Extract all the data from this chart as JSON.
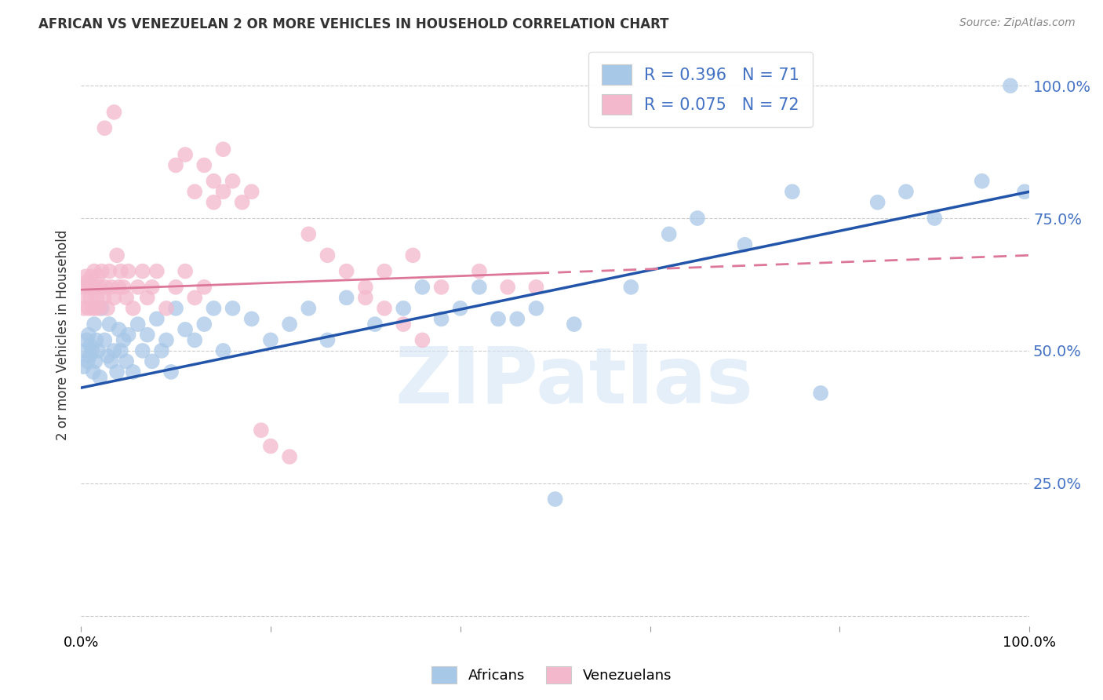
{
  "title": "AFRICAN VS VENEZUELAN 2 OR MORE VEHICLES IN HOUSEHOLD CORRELATION CHART",
  "source": "Source: ZipAtlas.com",
  "ylabel": "2 or more Vehicles in Household",
  "xlim": [
    0.0,
    1.0
  ],
  "ylim": [
    -0.02,
    1.08
  ],
  "ytick_vals": [
    0.0,
    0.25,
    0.5,
    0.75,
    1.0
  ],
  "ytick_labels": [
    "",
    "25.0%",
    "50.0%",
    "75.0%",
    "100.0%"
  ],
  "blue_R": 0.396,
  "blue_N": 71,
  "pink_R": 0.075,
  "pink_N": 72,
  "blue_color": "#a8c8e8",
  "pink_color": "#f4b8cc",
  "blue_line_color": "#2255aa",
  "pink_line_color": "#dd7799",
  "watermark": "ZIPatlas",
  "blue_line_x0": 0.0,
  "blue_line_y0": 0.43,
  "blue_line_x1": 1.0,
  "blue_line_y1": 0.8,
  "pink_line_x0": 0.0,
  "pink_line_y0": 0.615,
  "pink_line_x1": 1.0,
  "pink_line_y1": 0.68,
  "pink_line_dash_start": 0.48,
  "blue_africans_x": [
    0.003,
    0.005,
    0.006,
    0.007,
    0.008,
    0.009,
    0.01,
    0.012,
    0.013,
    0.014,
    0.015,
    0.016,
    0.018,
    0.02,
    0.022,
    0.025,
    0.028,
    0.03,
    0.032,
    0.035,
    0.038,
    0.04,
    0.042,
    0.045,
    0.048,
    0.05,
    0.055,
    0.06,
    0.065,
    0.07,
    0.075,
    0.08,
    0.085,
    0.09,
    0.095,
    0.1,
    0.11,
    0.12,
    0.13,
    0.14,
    0.15,
    0.16,
    0.18,
    0.2,
    0.22,
    0.24,
    0.26,
    0.28,
    0.31,
    0.34,
    0.36,
    0.38,
    0.4,
    0.42,
    0.44,
    0.46,
    0.48,
    0.5,
    0.52,
    0.58,
    0.62,
    0.65,
    0.7,
    0.75,
    0.78,
    0.84,
    0.87,
    0.9,
    0.95,
    0.98,
    0.995
  ],
  "blue_africans_y": [
    0.47,
    0.5,
    0.52,
    0.48,
    0.53,
    0.49,
    0.51,
    0.5,
    0.46,
    0.55,
    0.48,
    0.52,
    0.5,
    0.45,
    0.58,
    0.52,
    0.49,
    0.55,
    0.48,
    0.5,
    0.46,
    0.54,
    0.5,
    0.52,
    0.48,
    0.53,
    0.46,
    0.55,
    0.5,
    0.53,
    0.48,
    0.56,
    0.5,
    0.52,
    0.46,
    0.58,
    0.54,
    0.52,
    0.55,
    0.58,
    0.5,
    0.58,
    0.56,
    0.52,
    0.55,
    0.58,
    0.52,
    0.6,
    0.55,
    0.58,
    0.62,
    0.56,
    0.58,
    0.62,
    0.56,
    0.56,
    0.58,
    0.22,
    0.55,
    0.62,
    0.72,
    0.75,
    0.7,
    0.8,
    0.42,
    0.78,
    0.8,
    0.75,
    0.82,
    1.0,
    0.8
  ],
  "pink_venezuelans_x": [
    0.003,
    0.004,
    0.005,
    0.006,
    0.007,
    0.008,
    0.009,
    0.01,
    0.011,
    0.012,
    0.013,
    0.014,
    0.015,
    0.016,
    0.017,
    0.018,
    0.019,
    0.02,
    0.022,
    0.024,
    0.026,
    0.028,
    0.03,
    0.032,
    0.035,
    0.038,
    0.04,
    0.042,
    0.045,
    0.048,
    0.05,
    0.055,
    0.06,
    0.065,
    0.07,
    0.075,
    0.08,
    0.09,
    0.1,
    0.11,
    0.12,
    0.13,
    0.14,
    0.15,
    0.16,
    0.17,
    0.18,
    0.19,
    0.2,
    0.22,
    0.24,
    0.26,
    0.28,
    0.3,
    0.32,
    0.35,
    0.38,
    0.42,
    0.45,
    0.48,
    0.1,
    0.11,
    0.12,
    0.13,
    0.14,
    0.15,
    0.3,
    0.32,
    0.34,
    0.36,
    0.025,
    0.035
  ],
  "pink_venezuelans_y": [
    0.58,
    0.62,
    0.64,
    0.6,
    0.63,
    0.58,
    0.62,
    0.6,
    0.64,
    0.58,
    0.62,
    0.65,
    0.58,
    0.62,
    0.6,
    0.64,
    0.58,
    0.62,
    0.65,
    0.6,
    0.62,
    0.58,
    0.65,
    0.62,
    0.6,
    0.68,
    0.62,
    0.65,
    0.62,
    0.6,
    0.65,
    0.58,
    0.62,
    0.65,
    0.6,
    0.62,
    0.65,
    0.58,
    0.62,
    0.65,
    0.6,
    0.62,
    0.78,
    0.8,
    0.82,
    0.78,
    0.8,
    0.35,
    0.32,
    0.3,
    0.72,
    0.68,
    0.65,
    0.62,
    0.65,
    0.68,
    0.62,
    0.65,
    0.62,
    0.62,
    0.85,
    0.87,
    0.8,
    0.85,
    0.82,
    0.88,
    0.6,
    0.58,
    0.55,
    0.52,
    0.92,
    0.95
  ]
}
